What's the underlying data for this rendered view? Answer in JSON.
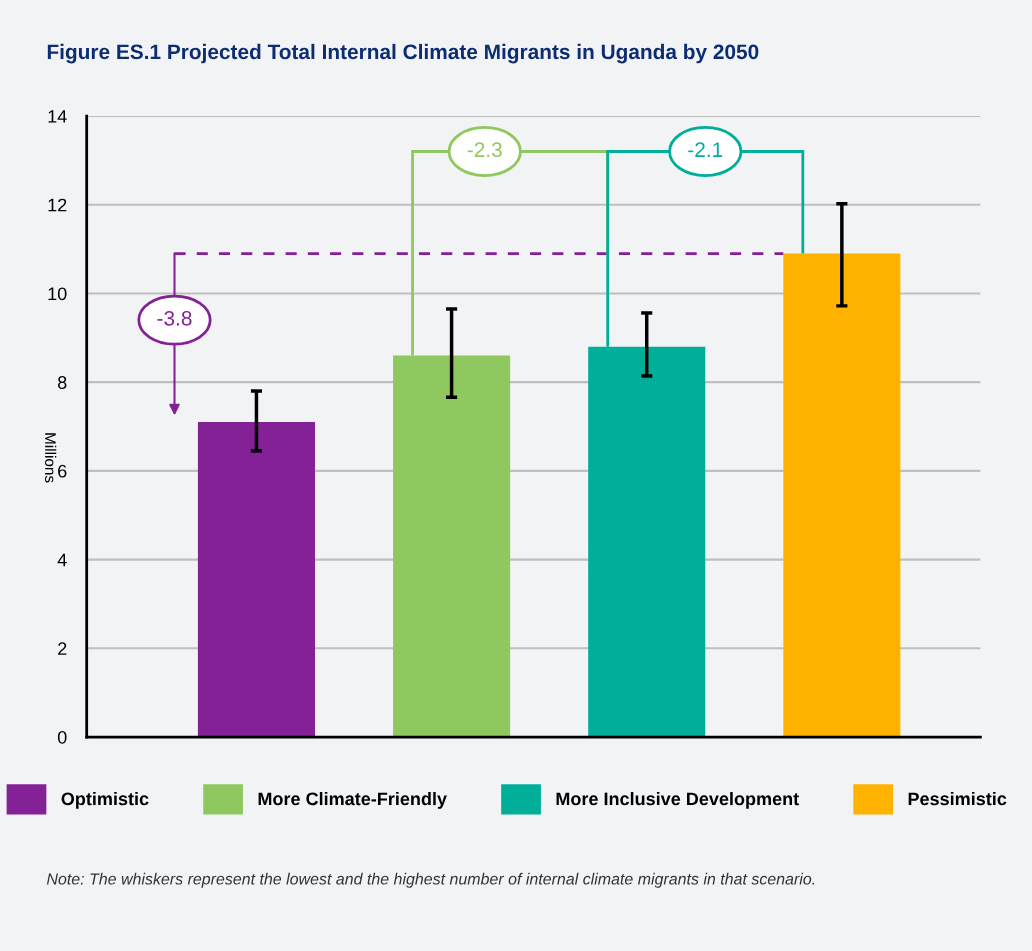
{
  "chart_data": {
    "type": "bar",
    "title": "Figure ES.1 Projected Total Internal Climate Migrants in Uganda by 2050",
    "ylabel": "Millions",
    "categories": [
      null,
      null,
      null,
      null
    ],
    "series": [
      {
        "name": "Optimistic",
        "color": "#842196",
        "values": [
          7.1,
          null,
          null,
          null
        ],
        "errors": [
          [
            6.45,
            7.8
          ],
          null,
          null,
          null
        ]
      },
      {
        "name": "More Climate-Friendly",
        "color": "#8fc85f",
        "values": [
          null,
          8.6,
          null,
          null
        ],
        "errors": [
          null,
          [
            7.66,
            9.65
          ],
          null,
          null
        ]
      },
      {
        "name": "More Inclusive Development",
        "color": "#00ae9a",
        "values": [
          null,
          null,
          8.8,
          null
        ],
        "errors": [
          null,
          null,
          [
            8.14,
            9.56
          ],
          null
        ]
      },
      {
        "name": "Pessimistic",
        "color": "#ffb300",
        "values": [
          null,
          null,
          null,
          10.9
        ],
        "errors": [
          null,
          null,
          null,
          [
            9.72,
            12.02
          ]
        ]
      }
    ],
    "ylim": [
      0,
      14
    ],
    "yticks": [
      0,
      2,
      4,
      6,
      8,
      10,
      12,
      14
    ],
    "ref_lines": [
      {
        "axis": "y",
        "value": 10.9,
        "color": "#842196",
        "line_style": "dashed"
      }
    ],
    "grid": "y",
    "legend": "bottom",
    "tick_labels": "y",
    "annotations": [
      "-3.8",
      "-2.3",
      "-2.1",
      "Note: The whiskers represent the lowest and the highest number of internal climate migrants in that scenario."
    ]
  }
}
